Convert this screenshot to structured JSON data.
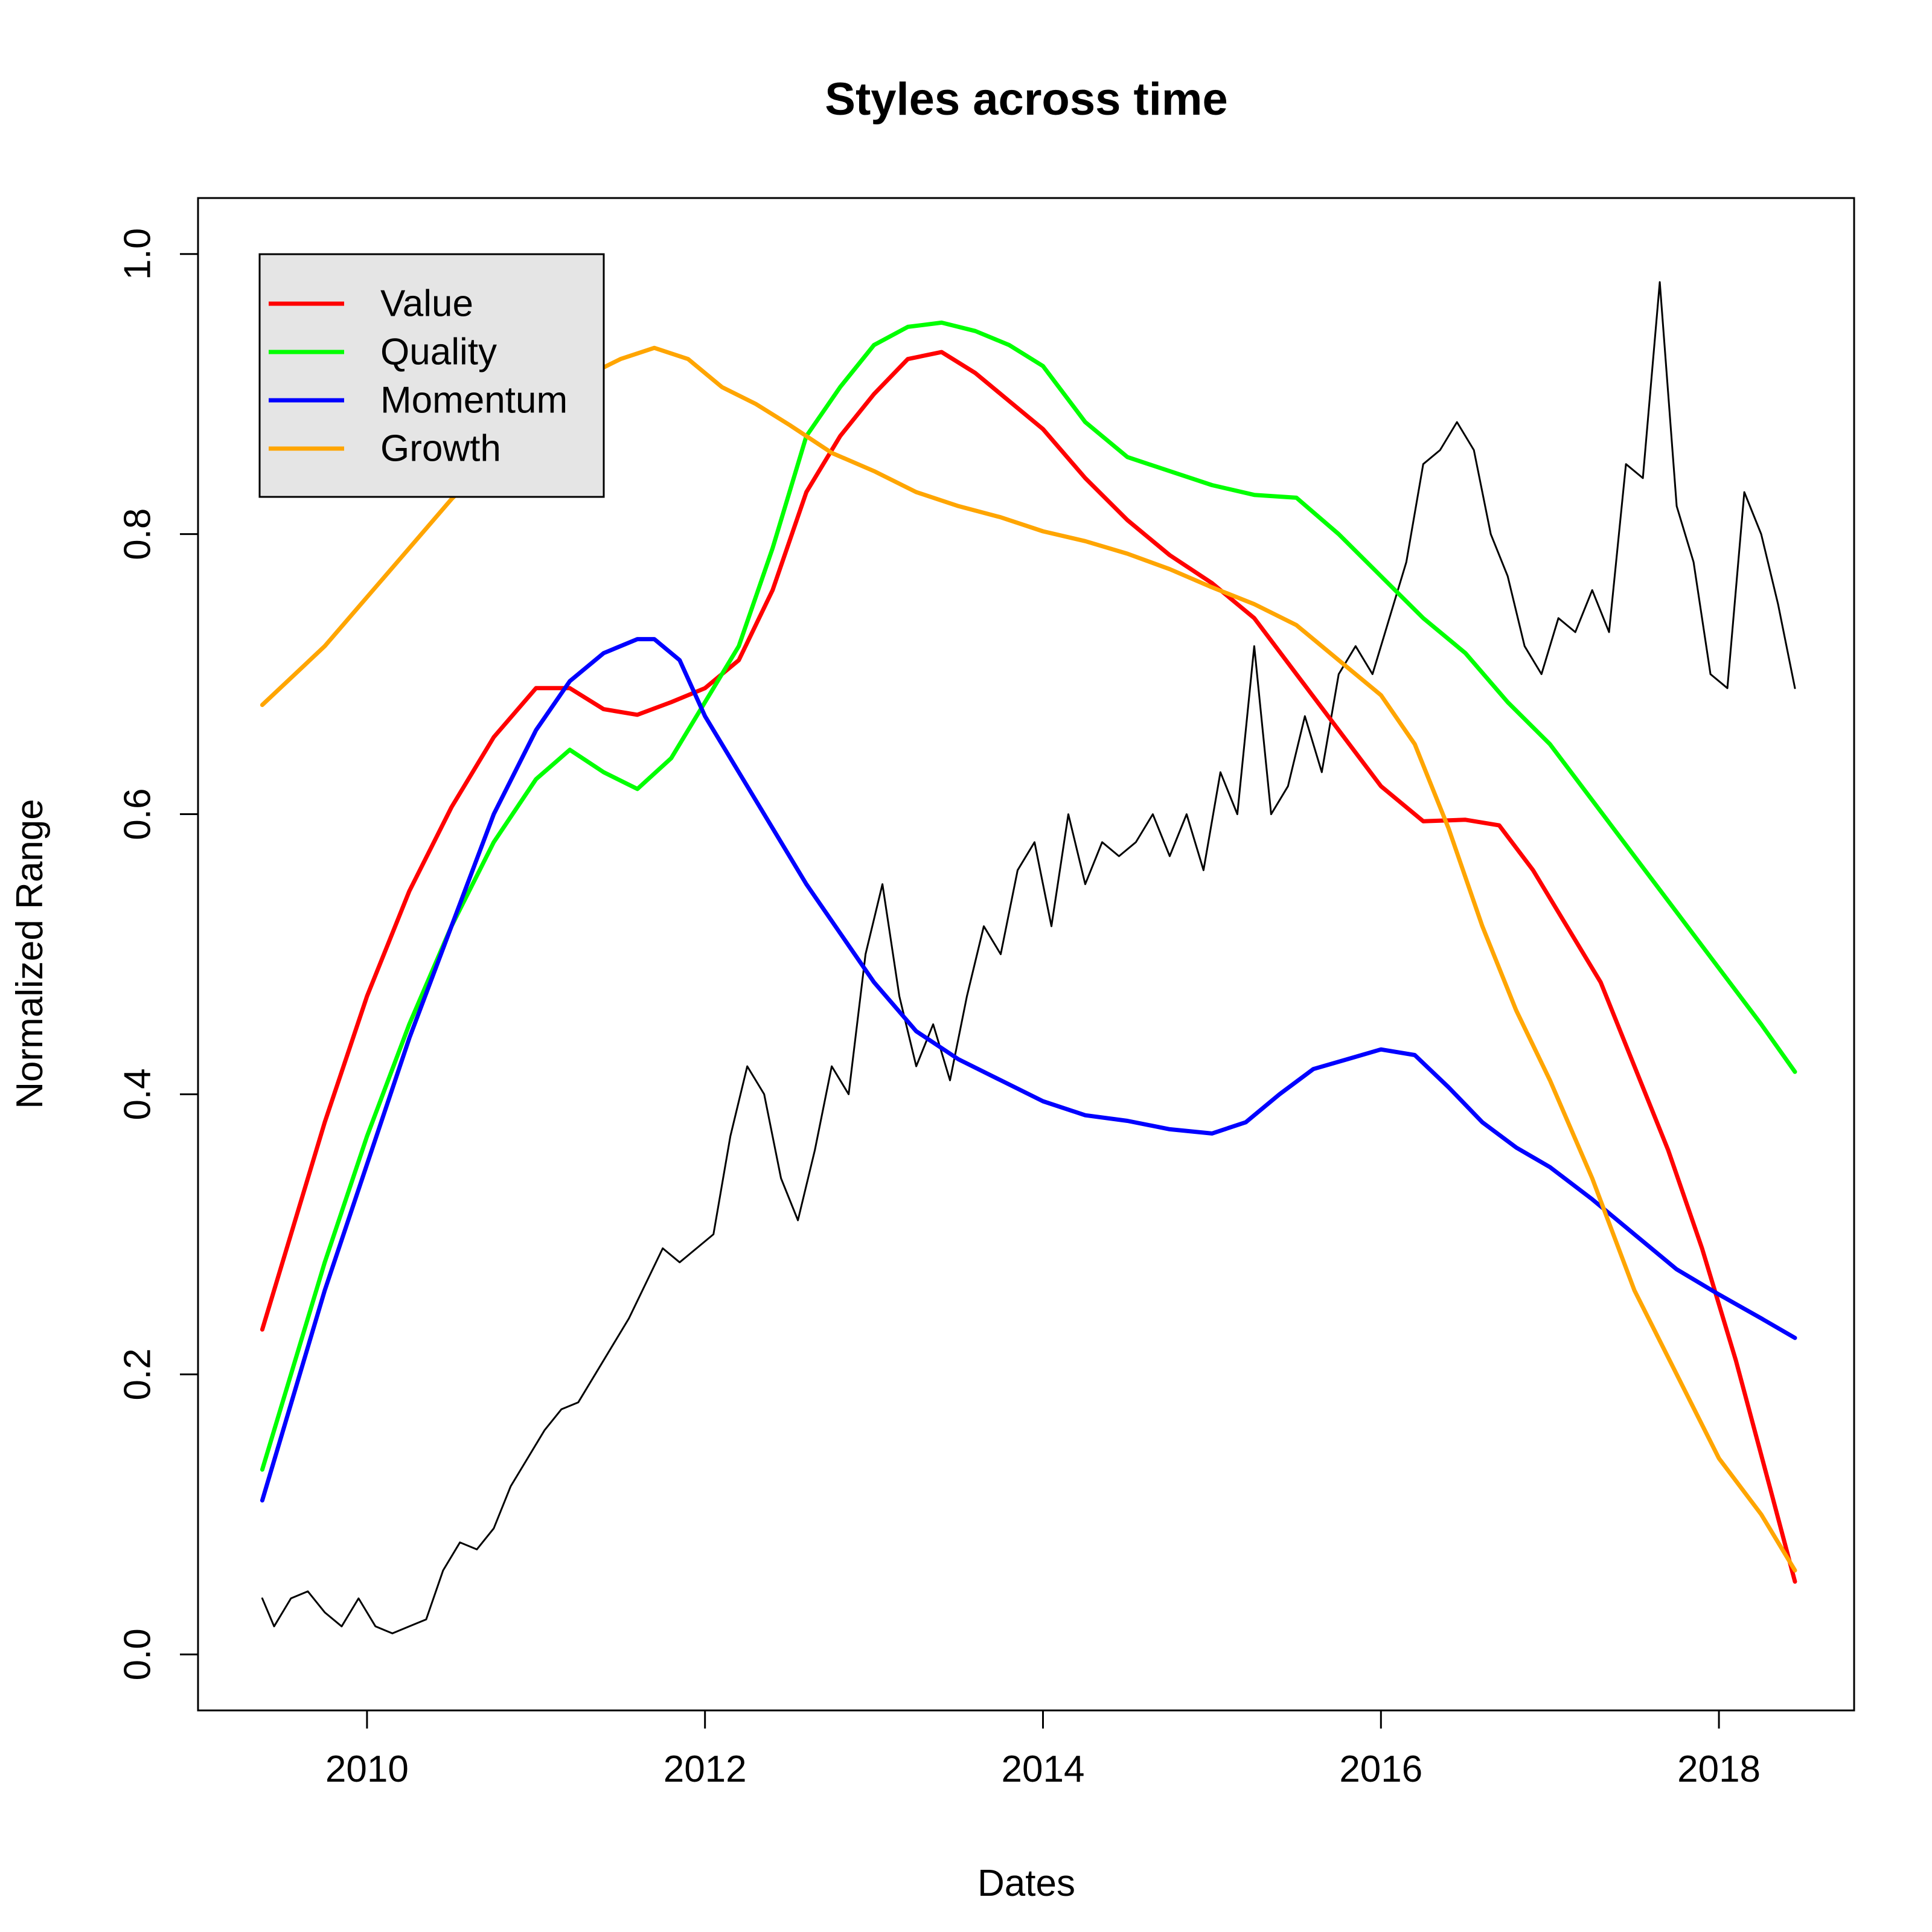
{
  "chart_data": {
    "type": "line",
    "title": "Styles across time",
    "xlabel": "Dates",
    "ylabel": "Normalized Range",
    "xlim": [
      2009.0,
      2018.8
    ],
    "ylim": [
      -0.04,
      1.04
    ],
    "x_ticks": [
      2010,
      2012,
      2014,
      2016,
      2018
    ],
    "x_tick_labels": [
      "2010",
      "2012",
      "2014",
      "2016",
      "2018"
    ],
    "y_ticks": [
      0.0,
      0.2,
      0.4,
      0.6,
      0.8,
      1.0
    ],
    "y_tick_labels": [
      "0.0",
      "0.2",
      "0.4",
      "0.6",
      "0.8",
      "1.0"
    ],
    "grid": false,
    "legend_position": "top-left",
    "series": [
      {
        "name": "Value",
        "color": "#ff0000",
        "in_legend": true,
        "x": [
          2009.38,
          2009.75,
          2010.0,
          2010.25,
          2010.5,
          2010.75,
          2011.0,
          2011.2,
          2011.4,
          2011.6,
          2011.8,
          2012.0,
          2012.2,
          2012.4,
          2012.6,
          2012.8,
          2013.0,
          2013.2,
          2013.4,
          2013.6,
          2013.8,
          2014.0,
          2014.25,
          2014.5,
          2014.75,
          2015.0,
          2015.25,
          2015.5,
          2015.75,
          2016.0,
          2016.25,
          2016.5,
          2016.7,
          2016.9,
          2017.1,
          2017.3,
          2017.5,
          2017.7,
          2017.9,
          2018.1,
          2018.3,
          2018.45
        ],
        "y": [
          0.232,
          0.38,
          0.47,
          0.545,
          0.605,
          0.655,
          0.69,
          0.69,
          0.675,
          0.671,
          0.68,
          0.69,
          0.71,
          0.76,
          0.83,
          0.87,
          0.9,
          0.925,
          0.93,
          0.915,
          0.895,
          0.875,
          0.84,
          0.81,
          0.785,
          0.765,
          0.74,
          0.7,
          0.66,
          0.62,
          0.595,
          0.596,
          0.592,
          0.56,
          0.52,
          0.48,
          0.42,
          0.36,
          0.29,
          0.21,
          0.12,
          0.052
        ]
      },
      {
        "name": "Quality",
        "color": "#00ff00",
        "in_legend": true,
        "x": [
          2009.38,
          2009.75,
          2010.0,
          2010.25,
          2010.5,
          2010.75,
          2011.0,
          2011.2,
          2011.4,
          2011.6,
          2011.8,
          2012.0,
          2012.2,
          2012.4,
          2012.6,
          2012.8,
          2013.0,
          2013.2,
          2013.4,
          2013.6,
          2013.8,
          2014.0,
          2014.25,
          2014.5,
          2014.75,
          2015.0,
          2015.25,
          2015.5,
          2015.75,
          2016.0,
          2016.25,
          2016.5,
          2016.75,
          2017.0,
          2017.25,
          2017.5,
          2017.75,
          2018.0,
          2018.25,
          2018.45
        ],
        "y": [
          0.132,
          0.28,
          0.37,
          0.45,
          0.52,
          0.58,
          0.625,
          0.646,
          0.63,
          0.618,
          0.64,
          0.68,
          0.72,
          0.79,
          0.87,
          0.905,
          0.935,
          0.948,
          0.951,
          0.945,
          0.935,
          0.92,
          0.88,
          0.855,
          0.845,
          0.835,
          0.828,
          0.826,
          0.8,
          0.77,
          0.74,
          0.715,
          0.68,
          0.65,
          0.61,
          0.57,
          0.53,
          0.49,
          0.45,
          0.416
        ]
      },
      {
        "name": "Momentum",
        "color": "#0000ff",
        "in_legend": true,
        "x": [
          2009.38,
          2009.75,
          2010.0,
          2010.25,
          2010.5,
          2010.75,
          2011.0,
          2011.2,
          2011.4,
          2011.6,
          2011.7,
          2011.85,
          2012.0,
          2012.2,
          2012.4,
          2012.6,
          2012.8,
          2013.0,
          2013.25,
          2013.5,
          2013.75,
          2014.0,
          2014.25,
          2014.5,
          2014.75,
          2015.0,
          2015.2,
          2015.4,
          2015.6,
          2015.8,
          2016.0,
          2016.2,
          2016.4,
          2016.6,
          2016.8,
          2017.0,
          2017.25,
          2017.5,
          2017.75,
          2018.0,
          2018.25,
          2018.45
        ],
        "y": [
          0.11,
          0.26,
          0.35,
          0.44,
          0.52,
          0.6,
          0.66,
          0.695,
          0.715,
          0.725,
          0.725,
          0.71,
          0.67,
          0.63,
          0.59,
          0.55,
          0.515,
          0.48,
          0.445,
          0.425,
          0.41,
          0.395,
          0.385,
          0.381,
          0.375,
          0.372,
          0.38,
          0.4,
          0.418,
          0.425,
          0.432,
          0.428,
          0.405,
          0.38,
          0.362,
          0.348,
          0.325,
          0.3,
          0.275,
          0.257,
          0.24,
          0.226
        ]
      },
      {
        "name": "Growth",
        "color": "#ffa500",
        "in_legend": true,
        "x": [
          2009.38,
          2009.75,
          2010.0,
          2010.25,
          2010.5,
          2010.75,
          2011.0,
          2011.25,
          2011.5,
          2011.7,
          2011.9,
          2012.1,
          2012.3,
          2012.5,
          2012.75,
          2013.0,
          2013.25,
          2013.5,
          2013.75,
          2014.0,
          2014.25,
          2014.5,
          2014.75,
          2015.0,
          2015.25,
          2015.5,
          2015.75,
          2016.0,
          2016.2,
          2016.4,
          2016.6,
          2016.8,
          2017.0,
          2017.25,
          2017.5,
          2017.75,
          2018.0,
          2018.25,
          2018.45
        ],
        "y": [
          0.678,
          0.72,
          0.755,
          0.79,
          0.825,
          0.855,
          0.885,
          0.91,
          0.925,
          0.933,
          0.925,
          0.905,
          0.893,
          0.878,
          0.858,
          0.845,
          0.83,
          0.82,
          0.812,
          0.802,
          0.795,
          0.786,
          0.775,
          0.762,
          0.75,
          0.735,
          0.71,
          0.685,
          0.65,
          0.59,
          0.52,
          0.46,
          0.41,
          0.34,
          0.26,
          0.2,
          0.14,
          0.1,
          0.06
        ]
      },
      {
        "name": "",
        "color": "#000000",
        "in_legend": false,
        "x": [
          2009.38,
          2009.45,
          2009.55,
          2009.65,
          2009.75,
          2009.85,
          2009.95,
          2010.05,
          2010.15,
          2010.25,
          2010.35,
          2010.45,
          2010.55,
          2010.65,
          2010.75,
          2010.85,
          2010.95,
          2011.05,
          2011.15,
          2011.25,
          2011.35,
          2011.45,
          2011.55,
          2011.65,
          2011.75,
          2011.85,
          2011.95,
          2012.05,
          2012.15,
          2012.25,
          2012.35,
          2012.45,
          2012.55,
          2012.65,
          2012.75,
          2012.85,
          2012.95,
          2013.05,
          2013.15,
          2013.25,
          2013.35,
          2013.45,
          2013.55,
          2013.65,
          2013.75,
          2013.85,
          2013.95,
          2014.05,
          2014.15,
          2014.25,
          2014.35,
          2014.45,
          2014.55,
          2014.65,
          2014.75,
          2014.85,
          2014.95,
          2015.05,
          2015.15,
          2015.25,
          2015.35,
          2015.45,
          2015.55,
          2015.65,
          2015.75,
          2015.85,
          2015.95,
          2016.05,
          2016.15,
          2016.25,
          2016.35,
          2016.45,
          2016.55,
          2016.65,
          2016.75,
          2016.85,
          2016.95,
          2017.05,
          2017.15,
          2017.25,
          2017.35,
          2017.45,
          2017.55,
          2017.65,
          2017.75,
          2017.85,
          2017.95,
          2018.05,
          2018.15,
          2018.25,
          2018.35,
          2018.45
        ],
        "y": [
          0.04,
          0.02,
          0.04,
          0.045,
          0.03,
          0.02,
          0.04,
          0.02,
          0.015,
          0.02,
          0.025,
          0.06,
          0.08,
          0.075,
          0.09,
          0.12,
          0.14,
          0.16,
          0.175,
          0.18,
          0.2,
          0.22,
          0.24,
          0.265,
          0.29,
          0.28,
          0.29,
          0.3,
          0.37,
          0.42,
          0.4,
          0.34,
          0.31,
          0.36,
          0.42,
          0.4,
          0.5,
          0.55,
          0.47,
          0.42,
          0.45,
          0.41,
          0.47,
          0.52,
          0.5,
          0.56,
          0.58,
          0.52,
          0.6,
          0.55,
          0.58,
          0.57,
          0.58,
          0.6,
          0.57,
          0.6,
          0.56,
          0.63,
          0.6,
          0.72,
          0.6,
          0.62,
          0.67,
          0.63,
          0.7,
          0.72,
          0.7,
          0.74,
          0.78,
          0.85,
          0.86,
          0.88,
          0.86,
          0.8,
          0.77,
          0.72,
          0.7,
          0.74,
          0.73,
          0.76,
          0.73,
          0.85,
          0.84,
          0.98,
          0.82,
          0.78,
          0.7,
          0.69,
          0.83,
          0.8,
          0.75,
          0.69
        ]
      }
    ]
  }
}
